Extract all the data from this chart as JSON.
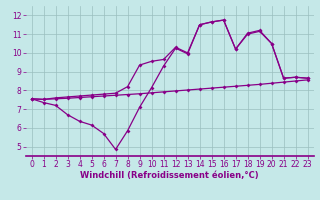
{
  "xlabel": "Windchill (Refroidissement éolien,°C)",
  "bg_color": "#c5e8e8",
  "line_color": "#880088",
  "xlim": [
    -0.5,
    23.5
  ],
  "ylim": [
    4.5,
    12.5
  ],
  "xticks": [
    0,
    1,
    2,
    3,
    4,
    5,
    6,
    7,
    8,
    9,
    10,
    11,
    12,
    13,
    14,
    15,
    16,
    17,
    18,
    19,
    20,
    21,
    22,
    23
  ],
  "yticks": [
    5,
    6,
    7,
    8,
    9,
    10,
    11,
    12
  ],
  "line1_x": [
    0,
    1,
    2,
    3,
    4,
    5,
    6,
    7,
    8,
    9,
    10,
    11,
    12,
    13,
    14,
    15,
    16,
    17,
    18,
    19,
    20,
    21,
    22,
    23
  ],
  "line1_y": [
    7.55,
    7.52,
    7.55,
    7.58,
    7.62,
    7.66,
    7.7,
    7.74,
    7.78,
    7.82,
    7.87,
    7.92,
    7.97,
    8.02,
    8.07,
    8.12,
    8.17,
    8.22,
    8.27,
    8.32,
    8.38,
    8.44,
    8.5,
    8.56
  ],
  "line2_x": [
    0,
    1,
    2,
    3,
    4,
    5,
    6,
    7,
    8,
    9,
    10,
    11,
    12,
    13,
    14,
    15,
    16,
    17,
    18,
    19,
    20,
    21,
    22,
    23
  ],
  "line2_y": [
    7.55,
    7.35,
    7.2,
    6.7,
    6.35,
    6.15,
    5.7,
    4.85,
    5.85,
    7.1,
    8.15,
    9.3,
    10.25,
    9.95,
    11.5,
    11.65,
    11.75,
    10.2,
    11.0,
    11.15,
    10.5,
    8.65,
    8.7,
    8.65
  ],
  "line3_x": [
    0,
    1,
    2,
    3,
    4,
    5,
    6,
    7,
    8,
    9,
    10,
    11,
    12,
    13,
    14,
    15,
    16,
    17,
    18,
    19,
    20,
    21,
    22,
    23
  ],
  "line3_y": [
    7.55,
    7.52,
    7.6,
    7.65,
    7.7,
    7.75,
    7.8,
    7.85,
    8.2,
    9.35,
    9.55,
    9.65,
    10.3,
    10.0,
    11.5,
    11.65,
    11.75,
    10.2,
    11.05,
    11.2,
    10.5,
    8.65,
    8.7,
    8.65
  ],
  "grid_color": "#9bbfbf",
  "marker": "D",
  "markersize": 2,
  "linewidth": 0.9,
  "xlabel_color": "#880088",
  "xlabel_fontsize": 6,
  "tick_fontsize": 5.5,
  "tick_color": "#880088"
}
